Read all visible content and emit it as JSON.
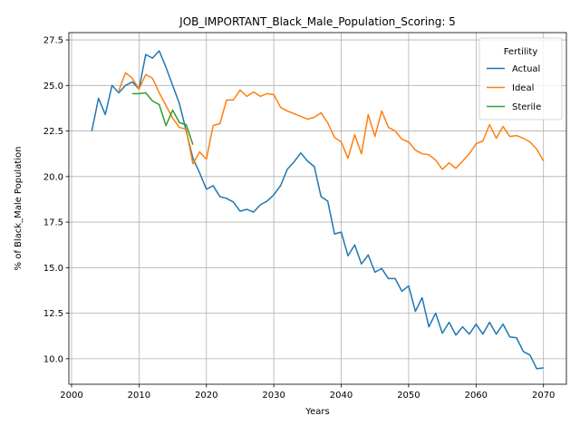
{
  "chart_data": {
    "type": "line",
    "title": "JOB_IMPORTANT_Black_Male_Population_Scoring: 5",
    "xlabel": "Years",
    "ylabel": "% of Black_Male Population",
    "xlim": [
      1999.6,
      2073.4
    ],
    "ylim": [
      8.6,
      27.9
    ],
    "x_ticks": [
      2000,
      2010,
      2020,
      2030,
      2040,
      2050,
      2060,
      2070
    ],
    "y_ticks": [
      10.0,
      12.5,
      15.0,
      17.5,
      20.0,
      22.5,
      25.0,
      27.5
    ],
    "x_tick_labels": [
      "2000",
      "2010",
      "2020",
      "2030",
      "2040",
      "2050",
      "2060",
      "2070"
    ],
    "y_tick_labels": [
      "10.0",
      "12.5",
      "15.0",
      "17.5",
      "20.0",
      "22.5",
      "25.0",
      "27.5"
    ],
    "grid": true,
    "legend": {
      "title": "Fertility",
      "placement": "top-right"
    },
    "series": [
      {
        "name": "Actual",
        "color": "#1f77b4",
        "x": [
          2003,
          2004,
          2005,
          2006,
          2007,
          2008,
          2009,
          2010,
          2011,
          2012,
          2013,
          2014,
          2015,
          2016,
          2017,
          2018,
          2019,
          2020,
          2021,
          2022,
          2023,
          2024,
          2025,
          2026,
          2027,
          2028,
          2029,
          2030,
          2031,
          2032,
          2033,
          2034,
          2035,
          2036,
          2037,
          2038,
          2039,
          2040,
          2041,
          2042,
          2043,
          2044,
          2045,
          2046,
          2047,
          2048,
          2049,
          2050,
          2051,
          2052,
          2053,
          2054,
          2055,
          2056,
          2057,
          2058,
          2059,
          2060,
          2061,
          2062,
          2063,
          2064,
          2065,
          2066,
          2067,
          2068,
          2069,
          2070
        ],
        "values": [
          22.5,
          24.3,
          23.4,
          25.0,
          24.6,
          25.0,
          25.2,
          24.8,
          26.7,
          26.5,
          26.9,
          26.0,
          25.0,
          24.0,
          22.5,
          21.0,
          20.2,
          19.3,
          19.5,
          18.9,
          18.8,
          18.6,
          18.1,
          18.2,
          18.05,
          18.45,
          18.65,
          19.0,
          19.5,
          20.4,
          20.8,
          21.3,
          20.85,
          20.55,
          18.9,
          18.65,
          16.85,
          16.95,
          15.65,
          16.25,
          15.2,
          15.7,
          14.75,
          14.95,
          14.4,
          14.4,
          13.7,
          14.0,
          12.6,
          13.35,
          11.75,
          12.5,
          11.4,
          12.0,
          11.3,
          11.75,
          11.35,
          11.9,
          11.35,
          12.0,
          11.35,
          11.9,
          11.2,
          11.15,
          10.4,
          10.2,
          9.45,
          9.5
        ]
      },
      {
        "name": "Ideal",
        "color": "#ff7f0e",
        "x": [
          2007,
          2008,
          2009,
          2010,
          2011,
          2012,
          2013,
          2014,
          2015,
          2016,
          2017,
          2018,
          2019,
          2020,
          2021,
          2022,
          2023,
          2024,
          2025,
          2026,
          2027,
          2028,
          2029,
          2030,
          2031,
          2032,
          2033,
          2034,
          2035,
          2036,
          2037,
          2038,
          2039,
          2040,
          2041,
          2042,
          2043,
          2044,
          2045,
          2046,
          2047,
          2048,
          2049,
          2050,
          2051,
          2052,
          2053,
          2054,
          2055,
          2056,
          2057,
          2058,
          2059,
          2060,
          2061,
          2062,
          2063,
          2064,
          2065,
          2066,
          2067,
          2068,
          2069,
          2070
        ],
        "values": [
          24.7,
          25.7,
          25.4,
          24.8,
          25.6,
          25.4,
          24.6,
          23.9,
          23.2,
          22.7,
          22.6,
          20.7,
          21.35,
          20.95,
          22.8,
          22.9,
          24.2,
          24.2,
          24.75,
          24.4,
          24.65,
          24.4,
          24.55,
          24.5,
          23.8,
          23.6,
          23.45,
          23.3,
          23.15,
          23.25,
          23.5,
          22.95,
          22.15,
          21.9,
          21.0,
          22.3,
          21.25,
          23.4,
          22.2,
          23.6,
          22.7,
          22.5,
          22.05,
          21.9,
          21.45,
          21.25,
          21.2,
          20.9,
          20.4,
          20.75,
          20.45,
          20.85,
          21.25,
          21.8,
          21.95,
          22.85,
          22.1,
          22.75,
          22.2,
          22.25,
          22.1,
          21.9,
          21.5,
          20.85
        ]
      },
      {
        "name": "Sterile",
        "color": "#2ca02c",
        "x": [
          2009,
          2010,
          2011,
          2012,
          2013,
          2014,
          2015,
          2016,
          2017,
          2018
        ],
        "values": [
          24.55,
          24.55,
          24.6,
          24.15,
          23.95,
          22.8,
          23.65,
          22.95,
          22.85,
          21.75
        ]
      }
    ]
  }
}
